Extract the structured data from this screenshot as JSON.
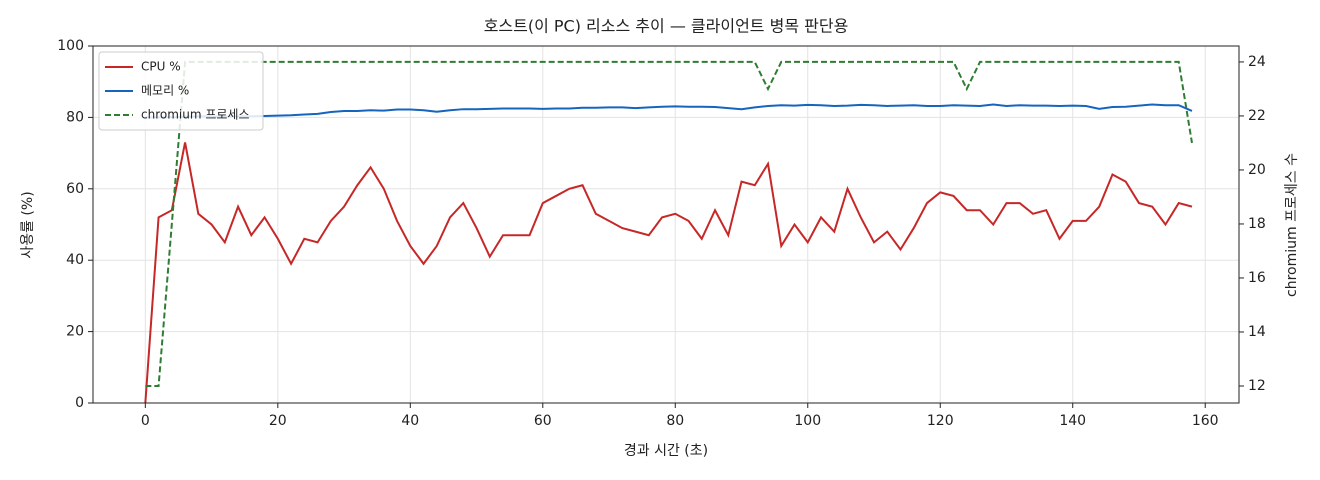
{
  "chart_data": {
    "type": "line",
    "title": "호스트(이 PC) 리소스 추이 — 클라이언트 병목 판단용",
    "xlabel": "경과 시간 (초)",
    "ylabel": "사용률 (%)",
    "y2label": "chromium 프로세스 수",
    "x": [
      0,
      2,
      4,
      6,
      8,
      10,
      12,
      14,
      16,
      18,
      20,
      22,
      24,
      26,
      28,
      30,
      32,
      34,
      36,
      38,
      40,
      42,
      44,
      46,
      48,
      50,
      52,
      54,
      56,
      58,
      60,
      62,
      64,
      66,
      68,
      70,
      72,
      74,
      76,
      78,
      80,
      82,
      84,
      86,
      88,
      90,
      92,
      94,
      96,
      98,
      100,
      102,
      104,
      106,
      108,
      110,
      112,
      114,
      116,
      118,
      120,
      122,
      124,
      126,
      128,
      130,
      132,
      134,
      136,
      138,
      140,
      142,
      144,
      146,
      148,
      150,
      152,
      154,
      156,
      158
    ],
    "series": [
      {
        "name": "CPU %",
        "color": "#c62828",
        "dash": false,
        "axis": "y",
        "values": [
          0,
          52,
          54,
          73,
          53,
          50,
          45,
          55,
          47,
          52,
          46,
          39,
          46,
          45,
          51,
          55,
          61,
          66,
          60,
          51,
          44,
          39,
          44,
          52,
          56,
          49,
          41,
          47,
          47,
          47,
          56,
          58,
          60,
          61,
          53,
          51,
          49,
          48,
          47,
          52,
          53,
          51,
          46,
          54,
          47,
          62,
          61,
          67,
          44,
          50,
          45,
          52,
          48,
          60,
          52,
          45,
          48,
          43,
          49,
          56,
          59,
          58,
          54,
          54,
          50,
          56,
          56,
          53,
          54,
          46,
          51,
          51,
          55,
          64,
          62,
          56,
          55,
          50,
          56,
          55
        ]
      },
      {
        "name": "메모리 %",
        "color": "#1565c0",
        "dash": false,
        "axis": "y",
        "values": [
          80,
          80,
          80,
          80.2,
          80.3,
          80.3,
          80.2,
          80.3,
          80.3,
          80.4,
          80.5,
          80.6,
          80.8,
          81,
          81.5,
          81.8,
          81.8,
          82,
          81.9,
          82.2,
          82.2,
          82,
          81.6,
          82,
          82.3,
          82.3,
          82.4,
          82.5,
          82.5,
          82.5,
          82.4,
          82.5,
          82.5,
          82.7,
          82.7,
          82.8,
          82.8,
          82.6,
          82.8,
          83,
          83.1,
          83,
          83,
          82.9,
          82.6,
          82.3,
          82.8,
          83.2,
          83.4,
          83.3,
          83.5,
          83.4,
          83.2,
          83.3,
          83.5,
          83.4,
          83.2,
          83.3,
          83.4,
          83.2,
          83.2,
          83.4,
          83.3,
          83.2,
          83.6,
          83.2,
          83.4,
          83.3,
          83.3,
          83.2,
          83.3,
          83.2,
          82.4,
          82.9,
          83,
          83.3,
          83.6,
          83.4,
          83.4,
          81.8
        ]
      },
      {
        "name": "chromium 프로세스",
        "color": "#2e7d32",
        "dash": true,
        "axis": "y2",
        "values": [
          12,
          12,
          18,
          24,
          24,
          24,
          24,
          24,
          24,
          24,
          24,
          24,
          24,
          24,
          24,
          24,
          24,
          24,
          24,
          24,
          24,
          24,
          24,
          24,
          24,
          24,
          24,
          24,
          24,
          24,
          24,
          24,
          24,
          24,
          24,
          24,
          24,
          24,
          24,
          24,
          24,
          24,
          24,
          24,
          24,
          24,
          24,
          23,
          24,
          24,
          24,
          24,
          24,
          24,
          24,
          24,
          24,
          24,
          24,
          24,
          24,
          24,
          23,
          24,
          24,
          24,
          24,
          24,
          24,
          24,
          24,
          24,
          24,
          24,
          24,
          24,
          24,
          24,
          24,
          21
        ]
      }
    ],
    "xlim": [
      -7.9,
      165.1
    ],
    "xticks": [
      0,
      20,
      40,
      60,
      80,
      100,
      120,
      140,
      160
    ],
    "ylim": [
      0,
      100
    ],
    "yticks": [
      0,
      20,
      40,
      60,
      80,
      100
    ],
    "y2lim": [
      11.37,
      24.59
    ],
    "y2ticks": [
      12,
      14,
      16,
      18,
      20,
      22,
      24
    ],
    "grid": true,
    "legend": "upper left"
  }
}
